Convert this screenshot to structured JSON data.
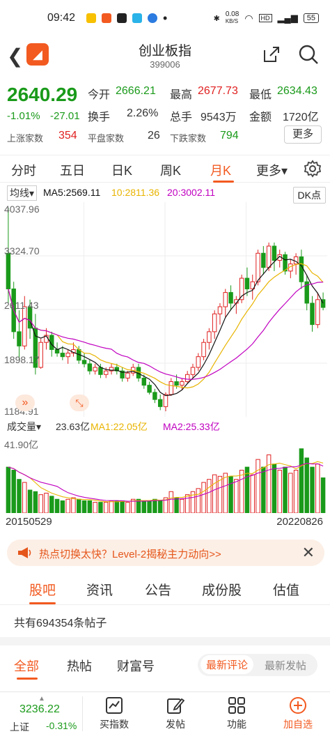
{
  "status": {
    "time": "09:42",
    "net_speed": "0.08",
    "net_unit": "KB/S",
    "battery": "55"
  },
  "nav": {
    "title": "创业板指",
    "code": "399006"
  },
  "quote": {
    "price": "2640.29",
    "change_pct": "-1.01%",
    "change": "-27.01",
    "open_label": "今开",
    "open": "2666.21",
    "high_label": "最高",
    "high": "2677.73",
    "low_label": "最低",
    "low": "2634.43",
    "turnover_label": "换手",
    "turnover": "2.26%",
    "volume_label": "总手",
    "volume": "9543万",
    "amount_label": "金额",
    "amount": "1720亿",
    "rise_label": "上涨家数",
    "rise": "354",
    "flat_label": "平盘家数",
    "flat": "26",
    "fall_label": "下跌家数",
    "fall": "794",
    "more": "更多"
  },
  "tabs": [
    "分时",
    "五日",
    "日K",
    "周K",
    "月K",
    "更多▾"
  ],
  "active_tab": "月K",
  "ma": {
    "label": "均线▾",
    "ma5": "MA5:2569.11",
    "ma10": "10:2811.36",
    "ma20": "20:3002.11",
    "dk": "DK点"
  },
  "kaxis": {
    "top": "4037.96",
    "mid1": "3324.70",
    "mid2": "2611.43",
    "mid3": "1898.17",
    "bottom": "1184.91"
  },
  "volume": {
    "label": "成交量▾",
    "value": "23.63亿",
    "ma1": "MA1:22.05亿",
    "ma2": "MA2:25.33亿",
    "max": "41.90亿"
  },
  "dates": {
    "start": "20150529",
    "end": "20220826"
  },
  "banner": {
    "text": "热点切换太快？Level-2揭秘主力动向>>"
  },
  "sub_tabs": [
    "股吧",
    "资讯",
    "公告",
    "成份股",
    "估值"
  ],
  "post_count": "共有694354条帖子",
  "filters": [
    "全部",
    "热帖",
    "财富号"
  ],
  "sort": [
    "最新评论",
    "最新发帖"
  ],
  "bottom": {
    "index_name": "上证",
    "index_value": "3236.22",
    "index_pct": "-0.31%",
    "items": [
      "买指数",
      "发帖",
      "功能",
      "加自选"
    ]
  },
  "colors": {
    "up": "#e02020",
    "down": "#1a9a1a",
    "accent": "#f25a20",
    "ma5": "#111111",
    "ma10": "#e8b400",
    "ma20": "#c000c0"
  },
  "chart_data": {
    "type": "candlestick",
    "y_range": [
      1184.91,
      4037.96
    ],
    "volume_max_yi": 41.9,
    "candles": [
      {
        "o": 3400,
        "h": 4037,
        "l": 2700,
        "c": 2900,
        "v": 30
      },
      {
        "o": 2900,
        "h": 3000,
        "l": 2200,
        "c": 2300,
        "v": 28
      },
      {
        "o": 2300,
        "h": 2600,
        "l": 1900,
        "c": 2100,
        "v": 22
      },
      {
        "o": 2100,
        "h": 2800,
        "l": 2050,
        "c": 2650,
        "v": 20
      },
      {
        "o": 2650,
        "h": 2750,
        "l": 2200,
        "c": 2350,
        "v": 15
      },
      {
        "o": 2350,
        "h": 2550,
        "l": 1700,
        "c": 1800,
        "v": 14
      },
      {
        "o": 1800,
        "h": 2200,
        "l": 1780,
        "c": 2150,
        "v": 12
      },
      {
        "o": 2150,
        "h": 2350,
        "l": 2050,
        "c": 2250,
        "v": 13
      },
      {
        "o": 2250,
        "h": 2300,
        "l": 1950,
        "c": 2050,
        "v": 11
      },
      {
        "o": 2050,
        "h": 2150,
        "l": 1950,
        "c": 2000,
        "v": 9
      },
      {
        "o": 2000,
        "h": 2100,
        "l": 1900,
        "c": 1950,
        "v": 8
      },
      {
        "o": 1950,
        "h": 2050,
        "l": 1850,
        "c": 2000,
        "v": 9
      },
      {
        "o": 2000,
        "h": 2150,
        "l": 1950,
        "c": 2050,
        "v": 10
      },
      {
        "o": 2050,
        "h": 2100,
        "l": 1850,
        "c": 1900,
        "v": 9
      },
      {
        "o": 1900,
        "h": 2000,
        "l": 1800,
        "c": 1850,
        "v": 8
      },
      {
        "o": 1850,
        "h": 1900,
        "l": 1700,
        "c": 1750,
        "v": 8
      },
      {
        "o": 1750,
        "h": 1850,
        "l": 1700,
        "c": 1800,
        "v": 7
      },
      {
        "o": 1800,
        "h": 1850,
        "l": 1650,
        "c": 1700,
        "v": 7
      },
      {
        "o": 1700,
        "h": 1800,
        "l": 1650,
        "c": 1750,
        "v": 7
      },
      {
        "o": 1750,
        "h": 1850,
        "l": 1700,
        "c": 1800,
        "v": 8
      },
      {
        "o": 1800,
        "h": 1850,
        "l": 1700,
        "c": 1750,
        "v": 8
      },
      {
        "o": 1750,
        "h": 1800,
        "l": 1600,
        "c": 1650,
        "v": 8
      },
      {
        "o": 1650,
        "h": 1750,
        "l": 1600,
        "c": 1720,
        "v": 7
      },
      {
        "o": 1720,
        "h": 1850,
        "l": 1680,
        "c": 1800,
        "v": 9
      },
      {
        "o": 1800,
        "h": 1850,
        "l": 1600,
        "c": 1650,
        "v": 9
      },
      {
        "o": 1650,
        "h": 1700,
        "l": 1500,
        "c": 1550,
        "v": 8
      },
      {
        "o": 1550,
        "h": 1600,
        "l": 1420,
        "c": 1450,
        "v": 8
      },
      {
        "o": 1450,
        "h": 1500,
        "l": 1300,
        "c": 1350,
        "v": 9
      },
      {
        "o": 1350,
        "h": 1420,
        "l": 1200,
        "c": 1250,
        "v": 8
      },
      {
        "o": 1250,
        "h": 1450,
        "l": 1185,
        "c": 1420,
        "v": 10
      },
      {
        "o": 1420,
        "h": 1650,
        "l": 1400,
        "c": 1600,
        "v": 14
      },
      {
        "o": 1600,
        "h": 1700,
        "l": 1500,
        "c": 1550,
        "v": 10
      },
      {
        "o": 1550,
        "h": 1650,
        "l": 1480,
        "c": 1600,
        "v": 9
      },
      {
        "o": 1600,
        "h": 1750,
        "l": 1580,
        "c": 1700,
        "v": 12
      },
      {
        "o": 1700,
        "h": 1850,
        "l": 1650,
        "c": 1800,
        "v": 14
      },
      {
        "o": 1800,
        "h": 2000,
        "l": 1750,
        "c": 1950,
        "v": 16
      },
      {
        "o": 1950,
        "h": 2200,
        "l": 1900,
        "c": 2150,
        "v": 20
      },
      {
        "o": 2150,
        "h": 2350,
        "l": 2050,
        "c": 2300,
        "v": 22
      },
      {
        "o": 2300,
        "h": 2600,
        "l": 2200,
        "c": 2550,
        "v": 25
      },
      {
        "o": 2550,
        "h": 2700,
        "l": 2400,
        "c": 2650,
        "v": 24
      },
      {
        "o": 2650,
        "h": 2900,
        "l": 2500,
        "c": 2850,
        "v": 26
      },
      {
        "o": 2850,
        "h": 2950,
        "l": 2600,
        "c": 2700,
        "v": 24
      },
      {
        "o": 2700,
        "h": 2800,
        "l": 2550,
        "c": 2750,
        "v": 22
      },
      {
        "o": 2750,
        "h": 3100,
        "l": 2700,
        "c": 3050,
        "v": 28
      },
      {
        "o": 3050,
        "h": 3200,
        "l": 2800,
        "c": 2900,
        "v": 30
      },
      {
        "o": 2900,
        "h": 3100,
        "l": 2750,
        "c": 3000,
        "v": 25
      },
      {
        "o": 3000,
        "h": 3450,
        "l": 2950,
        "c": 3400,
        "v": 35
      },
      {
        "o": 3400,
        "h": 3500,
        "l": 3100,
        "c": 3200,
        "v": 30
      },
      {
        "o": 3200,
        "h": 3550,
        "l": 3150,
        "c": 3500,
        "v": 38
      },
      {
        "o": 3500,
        "h": 3550,
        "l": 3150,
        "c": 3300,
        "v": 32
      },
      {
        "o": 3300,
        "h": 3450,
        "l": 3200,
        "c": 3380,
        "v": 28
      },
      {
        "o": 3380,
        "h": 3420,
        "l": 3100,
        "c": 3150,
        "v": 30
      },
      {
        "o": 3150,
        "h": 3320,
        "l": 3050,
        "c": 3250,
        "v": 26
      },
      {
        "o": 3250,
        "h": 3400,
        "l": 3100,
        "c": 3350,
        "v": 28
      },
      {
        "o": 3350,
        "h": 3450,
        "l": 2900,
        "c": 3000,
        "v": 42
      },
      {
        "o": 3000,
        "h": 3100,
        "l": 2600,
        "c": 2700,
        "v": 36
      },
      {
        "o": 2700,
        "h": 2800,
        "l": 2300,
        "c": 2400,
        "v": 30
      },
      {
        "o": 2400,
        "h": 2850,
        "l": 2350,
        "c": 2750,
        "v": 32
      },
      {
        "o": 2750,
        "h": 2850,
        "l": 2600,
        "c": 2640,
        "v": 23
      }
    ]
  }
}
